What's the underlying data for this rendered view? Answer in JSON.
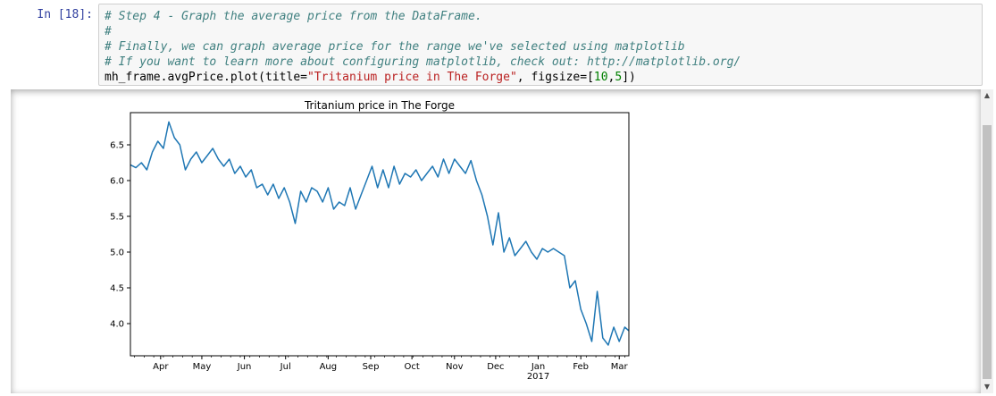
{
  "cell": {
    "prompt": "In [18]:",
    "code_lines": [
      {
        "parts": [
          {
            "t": "# Step 4 - Graph the average price from the DataFrame.",
            "c": "cm"
          }
        ]
      },
      {
        "parts": [
          {
            "t": "#",
            "c": "cm"
          }
        ]
      },
      {
        "parts": [
          {
            "t": "# Finally, we can graph average price for the range we've selected using matplotlib",
            "c": "cm"
          }
        ]
      },
      {
        "parts": [
          {
            "t": "# If you want to learn more about configuring matplotlib, check out: http://matplotlib.org/",
            "c": "cm"
          }
        ]
      },
      {
        "parts": [
          {
            "t": "mh_frame.avgPrice.plot(title=",
            "c": "plain"
          },
          {
            "t": "\"Tritanium price in The Forge\"",
            "c": "str"
          },
          {
            "t": ", figsize=[",
            "c": "plain"
          },
          {
            "t": "10",
            "c": "num"
          },
          {
            "t": ",",
            "c": "plain"
          },
          {
            "t": "5",
            "c": "num"
          },
          {
            "t": "])",
            "c": "plain"
          }
        ]
      }
    ]
  },
  "scrollbar": {
    "up_glyph": "▲",
    "down_glyph": "▼"
  },
  "chart_data": {
    "type": "line",
    "title": "Tritanium price in The Forge",
    "xlabel": "",
    "ylabel": "",
    "line_color": "#1f77b4",
    "xlim": [
      "2016-03-10",
      "2017-03-08"
    ],
    "ylim": [
      3.55,
      6.95
    ],
    "yticks": [
      4.0,
      4.5,
      5.0,
      5.5,
      6.0,
      6.5
    ],
    "ytick_labels": [
      "4.0",
      "4.5",
      "5.0",
      "5.5",
      "6.0",
      "6.5"
    ],
    "xticks": [
      {
        "date": "2016-04-01",
        "label": "Apr",
        "sub": ""
      },
      {
        "date": "2016-05-01",
        "label": "May",
        "sub": ""
      },
      {
        "date": "2016-06-01",
        "label": "Jun",
        "sub": ""
      },
      {
        "date": "2016-07-01",
        "label": "Jul",
        "sub": ""
      },
      {
        "date": "2016-08-01",
        "label": "Aug",
        "sub": ""
      },
      {
        "date": "2016-09-01",
        "label": "Sep",
        "sub": ""
      },
      {
        "date": "2016-10-01",
        "label": "Oct",
        "sub": ""
      },
      {
        "date": "2016-11-01",
        "label": "Nov",
        "sub": ""
      },
      {
        "date": "2016-12-01",
        "label": "Dec",
        "sub": ""
      },
      {
        "date": "2017-01-01",
        "label": "Jan",
        "sub": "2017"
      },
      {
        "date": "2017-02-01",
        "label": "Feb",
        "sub": ""
      },
      {
        "date": "2017-03-01",
        "label": "Mar",
        "sub": ""
      }
    ],
    "x": [
      "2016-03-10",
      "2016-03-14",
      "2016-03-18",
      "2016-03-22",
      "2016-03-26",
      "2016-03-30",
      "2016-04-03",
      "2016-04-07",
      "2016-04-11",
      "2016-04-15",
      "2016-04-19",
      "2016-04-23",
      "2016-04-27",
      "2016-05-01",
      "2016-05-05",
      "2016-05-09",
      "2016-05-13",
      "2016-05-17",
      "2016-05-21",
      "2016-05-25",
      "2016-05-29",
      "2016-06-02",
      "2016-06-06",
      "2016-06-10",
      "2016-06-14",
      "2016-06-18",
      "2016-06-22",
      "2016-06-26",
      "2016-06-30",
      "2016-07-04",
      "2016-07-08",
      "2016-07-12",
      "2016-07-16",
      "2016-07-20",
      "2016-07-24",
      "2016-07-28",
      "2016-08-01",
      "2016-08-05",
      "2016-08-09",
      "2016-08-13",
      "2016-08-17",
      "2016-08-21",
      "2016-08-25",
      "2016-08-29",
      "2016-09-02",
      "2016-09-06",
      "2016-09-10",
      "2016-09-14",
      "2016-09-18",
      "2016-09-22",
      "2016-09-26",
      "2016-09-30",
      "2016-10-04",
      "2016-10-08",
      "2016-10-12",
      "2016-10-16",
      "2016-10-20",
      "2016-10-24",
      "2016-10-28",
      "2016-11-01",
      "2016-11-05",
      "2016-11-09",
      "2016-11-13",
      "2016-11-17",
      "2016-11-21",
      "2016-11-25",
      "2016-11-29",
      "2016-12-03",
      "2016-12-07",
      "2016-12-11",
      "2016-12-15",
      "2016-12-19",
      "2016-12-23",
      "2016-12-27",
      "2016-12-31",
      "2017-01-04",
      "2017-01-08",
      "2017-01-12",
      "2017-01-16",
      "2017-01-20",
      "2017-01-24",
      "2017-01-28",
      "2017-02-01",
      "2017-02-05",
      "2017-02-09",
      "2017-02-13",
      "2017-02-17",
      "2017-02-21",
      "2017-02-25",
      "2017-03-01",
      "2017-03-05",
      "2017-03-08"
    ],
    "values": [
      6.22,
      6.18,
      6.25,
      6.15,
      6.4,
      6.55,
      6.45,
      6.82,
      6.6,
      6.5,
      6.15,
      6.3,
      6.4,
      6.25,
      6.35,
      6.45,
      6.3,
      6.2,
      6.3,
      6.1,
      6.2,
      6.05,
      6.15,
      5.9,
      5.95,
      5.8,
      5.95,
      5.75,
      5.9,
      5.7,
      5.4,
      5.85,
      5.7,
      5.9,
      5.85,
      5.7,
      5.9,
      5.6,
      5.7,
      5.65,
      5.9,
      5.6,
      5.8,
      6.0,
      6.2,
      5.9,
      6.15,
      5.9,
      6.2,
      5.95,
      6.1,
      6.05,
      6.15,
      6.0,
      6.1,
      6.2,
      6.05,
      6.3,
      6.1,
      6.3,
      6.2,
      6.1,
      6.28,
      6.0,
      5.8,
      5.5,
      5.1,
      5.55,
      5.0,
      5.2,
      4.95,
      5.05,
      5.15,
      5.0,
      4.9,
      5.05,
      5.0,
      5.05,
      5.0,
      4.95,
      4.5,
      4.6,
      4.2,
      4.0,
      3.75,
      4.45,
      3.8,
      3.7,
      3.95,
      3.75,
      3.95,
      3.9
    ]
  }
}
